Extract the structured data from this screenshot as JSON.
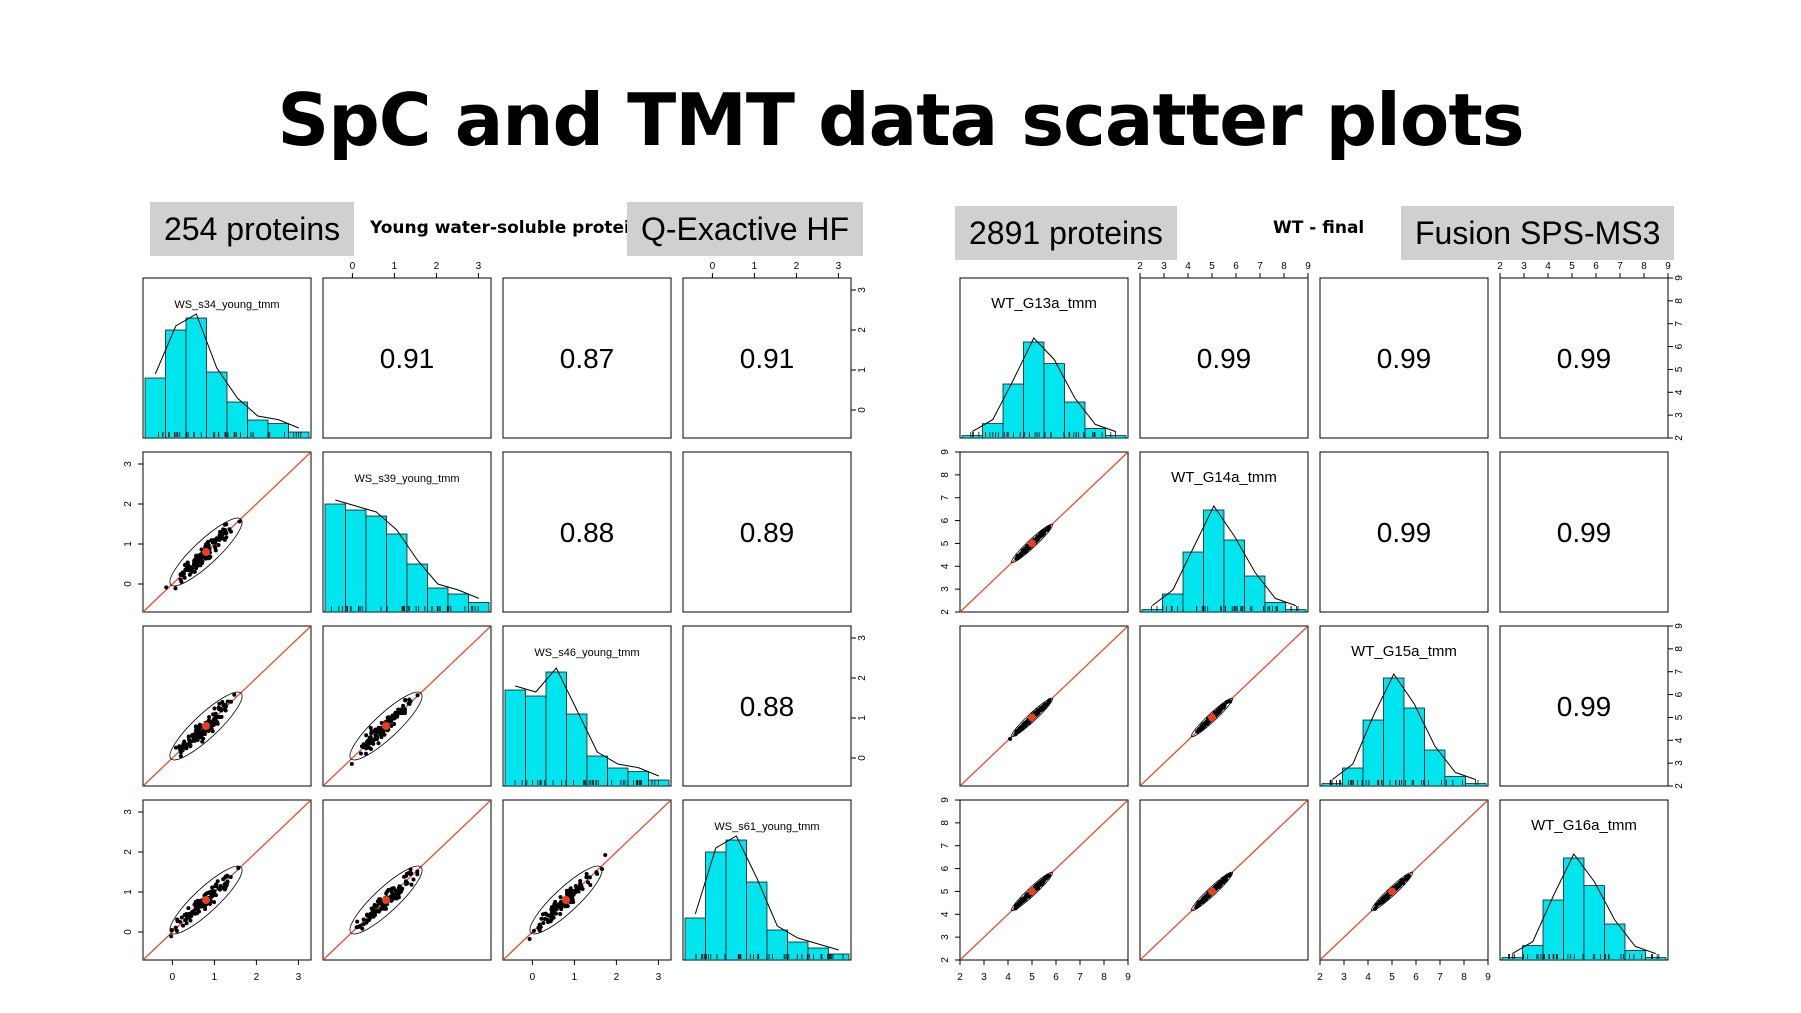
{
  "slide": {
    "title": "SpC and TMT data scatter plots",
    "left": {
      "count_badge": "254 proteins",
      "subtitle": "Young water-soluble proteins",
      "instrument_badge": "Q-Exactive HF"
    },
    "right": {
      "count_badge": "2891 proteins",
      "subtitle": "WT - final",
      "instrument_badge": "Fusion SPS-MS3"
    }
  },
  "chart_data": [
    {
      "type": "scatter",
      "kind": "scatterplot-matrix",
      "title": "Young water-soluble proteins",
      "variables": [
        "WS_s34_young_tmm",
        "WS_s39_young_tmm",
        "WS_s46_young_tmm",
        "WS_s61_young_tmm"
      ],
      "correlations": [
        {
          "row": 0,
          "col": 1,
          "r": "0.91"
        },
        {
          "row": 0,
          "col": 2,
          "r": "0.87"
        },
        {
          "row": 0,
          "col": 3,
          "r": "0.91"
        },
        {
          "row": 1,
          "col": 2,
          "r": "0.88"
        },
        {
          "row": 1,
          "col": 3,
          "r": "0.89"
        },
        {
          "row": 2,
          "col": 3,
          "r": "0.88"
        }
      ],
      "axis_range": [
        -0.7,
        3.3
      ],
      "ticks": [
        "0",
        "1",
        "2",
        "3"
      ],
      "histograms": [
        [
          0.5,
          0.9,
          1.0,
          0.55,
          0.3,
          0.15,
          0.12,
          0.05
        ],
        [
          0.9,
          0.85,
          0.8,
          0.65,
          0.4,
          0.2,
          0.15,
          0.08
        ],
        [
          0.8,
          0.75,
          0.95,
          0.6,
          0.25,
          0.15,
          0.12,
          0.05
        ],
        [
          0.35,
          0.9,
          1.0,
          0.65,
          0.25,
          0.15,
          0.1,
          0.05
        ]
      ],
      "marker_color": "#000000",
      "fit_line_color": "#e8401c",
      "histogram_color": "#00e5ee"
    },
    {
      "type": "scatter",
      "kind": "scatterplot-matrix",
      "title": "WT - final",
      "variables": [
        "WT_G13a_tmm",
        "WT_G14a_tmm",
        "WT_G15a_tmm",
        "WT_G16a_tmm"
      ],
      "correlations": [
        {
          "row": 0,
          "col": 1,
          "r": "0.99"
        },
        {
          "row": 0,
          "col": 2,
          "r": "0.99"
        },
        {
          "row": 0,
          "col": 3,
          "r": "0.99"
        },
        {
          "row": 1,
          "col": 2,
          "r": "0.99"
        },
        {
          "row": 1,
          "col": 3,
          "r": "0.99"
        },
        {
          "row": 2,
          "col": 3,
          "r": "0.99"
        }
      ],
      "axis_range": [
        2,
        9
      ],
      "ticks": [
        "2",
        "3",
        "4",
        "5",
        "6",
        "7",
        "8",
        "9"
      ],
      "histograms": [
        [
          0.02,
          0.12,
          0.45,
          0.8,
          0.62,
          0.3,
          0.08,
          0.02
        ],
        [
          0.02,
          0.15,
          0.5,
          0.85,
          0.6,
          0.3,
          0.08,
          0.02
        ],
        [
          0.02,
          0.15,
          0.55,
          0.9,
          0.65,
          0.3,
          0.08,
          0.02
        ],
        [
          0.02,
          0.12,
          0.5,
          0.85,
          0.62,
          0.3,
          0.08,
          0.02
        ]
      ],
      "marker_color": "#000000",
      "fit_line_color": "#e8401c",
      "histogram_color": "#00e5ee"
    }
  ]
}
